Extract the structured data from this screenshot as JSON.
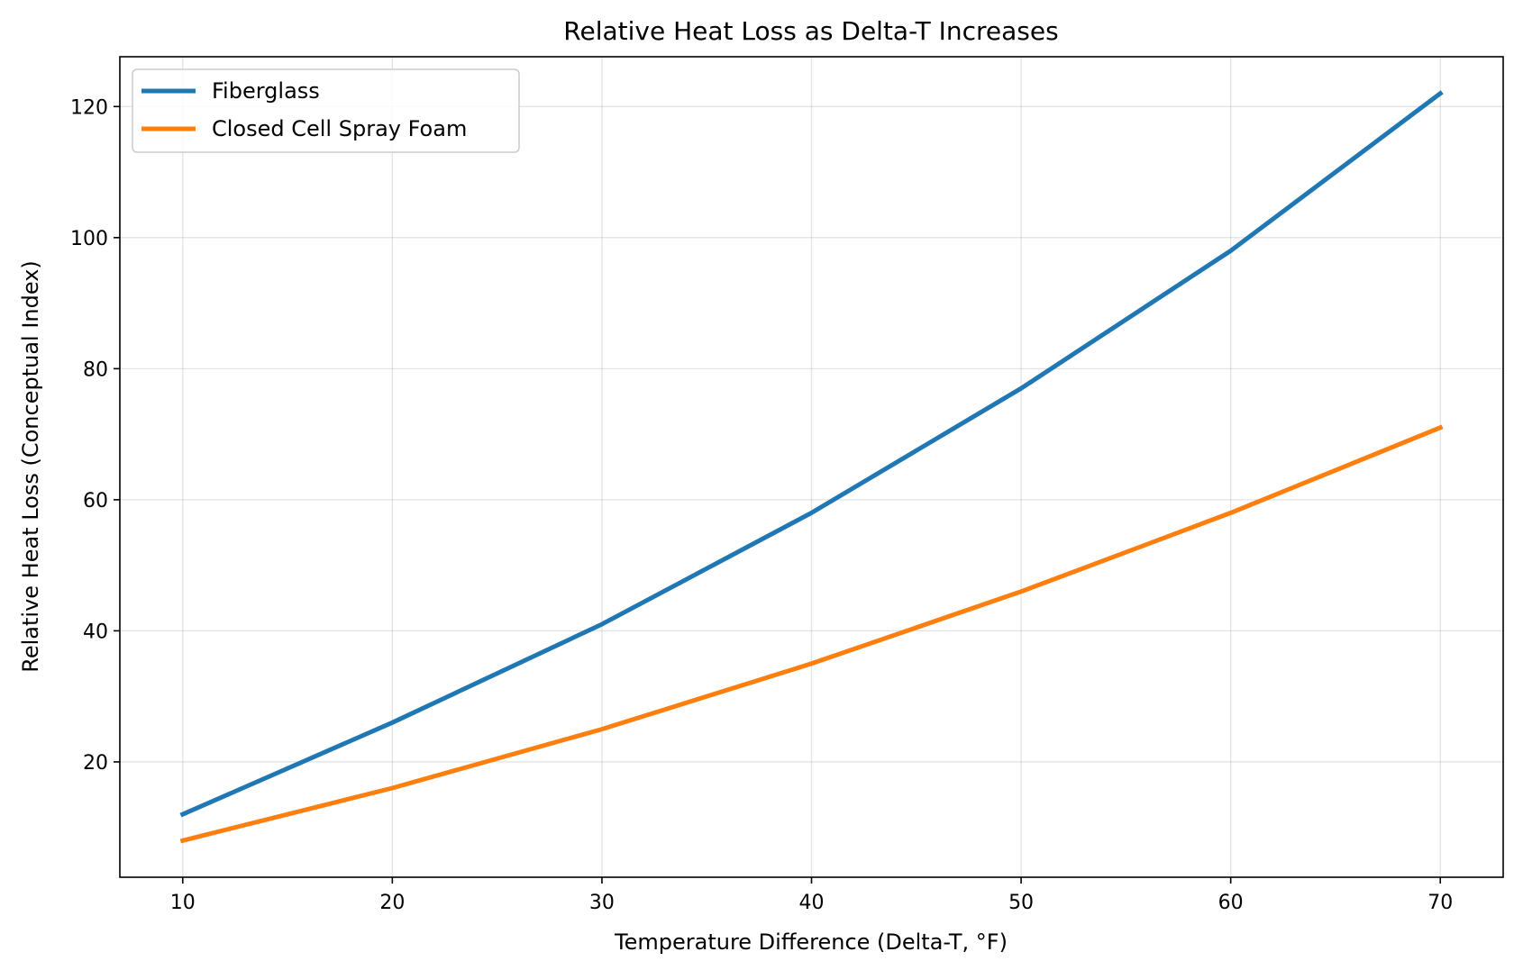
{
  "chart_data": {
    "type": "line",
    "title": "Relative Heat Loss as Delta-T Increases",
    "xlabel": "Temperature Difference (Delta-T, °F)",
    "ylabel": "Relative Heat Loss (Conceptual Index)",
    "x": [
      10,
      20,
      30,
      40,
      50,
      60,
      70
    ],
    "xlim": [
      7,
      73
    ],
    "ylim": [
      2.4,
      127.6
    ],
    "xticks": [
      10,
      20,
      30,
      40,
      50,
      60,
      70
    ],
    "yticks": [
      20,
      40,
      60,
      80,
      100,
      120
    ],
    "grid": true,
    "legend_position": "top-left",
    "series": [
      {
        "name": "Fiberglass",
        "color": "#1f77b4",
        "values": [
          12,
          26,
          41,
          58,
          77,
          98,
          122
        ]
      },
      {
        "name": "Closed Cell Spray Foam",
        "color": "#ff7f0e",
        "values": [
          8,
          16,
          25,
          35,
          46,
          58,
          71
        ]
      }
    ]
  }
}
